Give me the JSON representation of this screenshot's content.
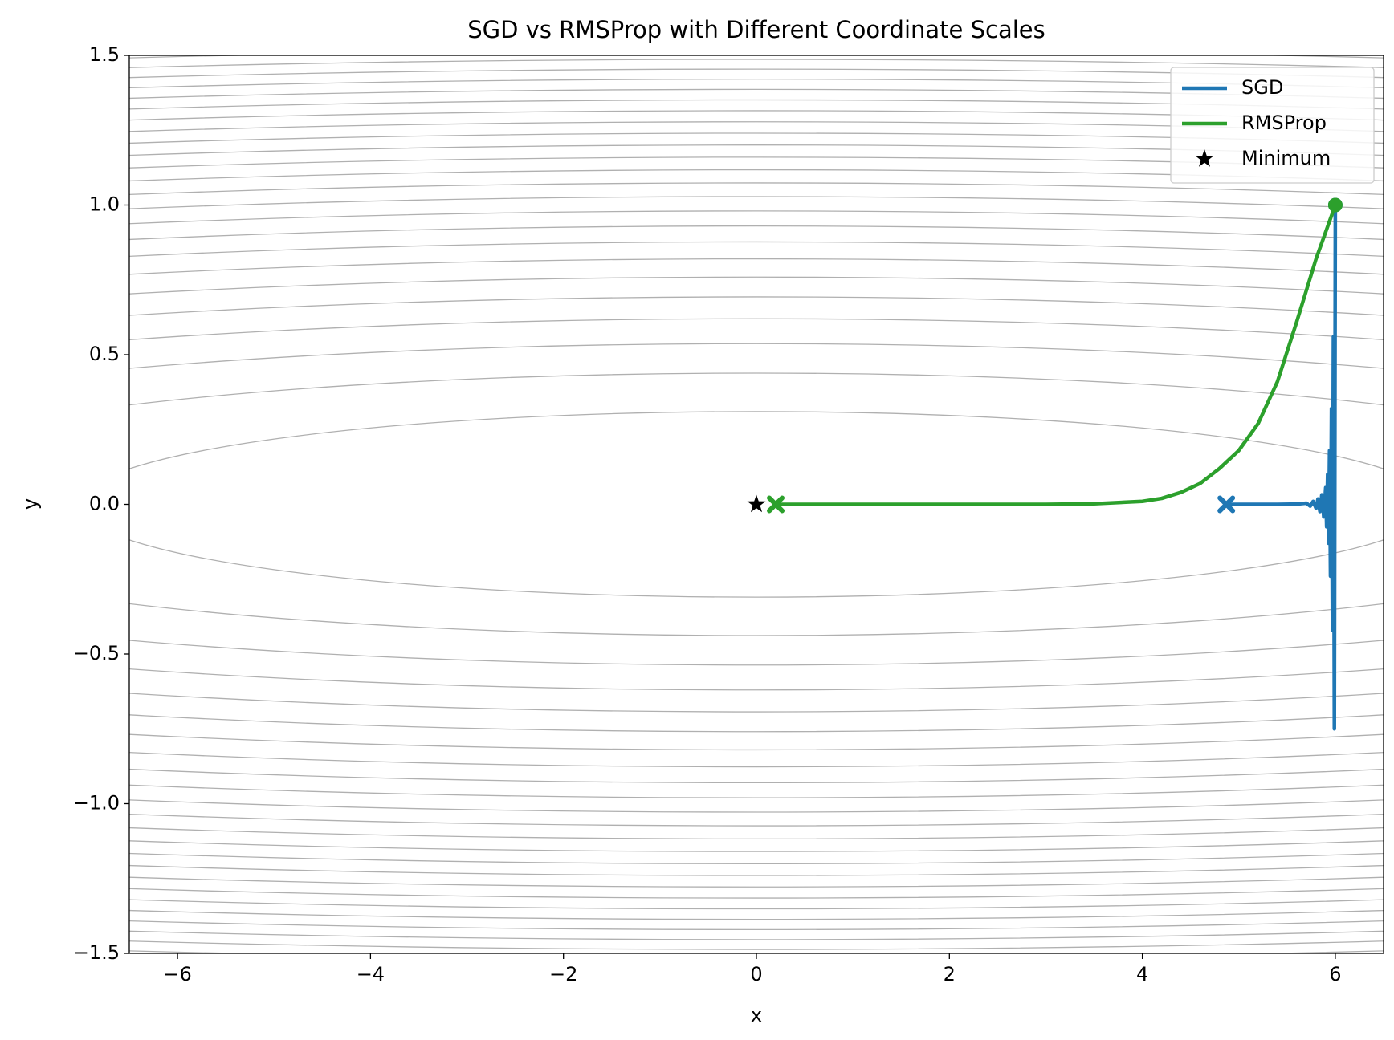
{
  "chart_data": {
    "type": "line",
    "title": "SGD vs RMSProp with Different Coordinate Scales",
    "x_label": "x",
    "y_label": "y",
    "xlim": [
      -6.5,
      6.5
    ],
    "ylim": [
      -1.5,
      1.5
    ],
    "xticks": [
      {
        "value": -6,
        "label": "−6"
      },
      {
        "value": -4,
        "label": "−4"
      },
      {
        "value": -2,
        "label": "−2"
      },
      0,
      2,
      4,
      6
    ],
    "yticks": [
      {
        "value": -1.5,
        "label": "−1.5"
      },
      {
        "value": -1.0,
        "label": "−1.0"
      },
      {
        "value": -0.5,
        "label": "−0.5"
      },
      {
        "value": 0,
        "label": "0.0"
      },
      0.5,
      {
        "value": 1.0,
        "label": "1.0"
      },
      1.5
    ],
    "legend": "upper right",
    "series": [
      {
        "name": "SGD",
        "color": "#1f77b4",
        "x": [
          6,
          5.99,
          5.98,
          5.97,
          5.96,
          5.95,
          5.94,
          5.93,
          5.92,
          5.91,
          5.9,
          5.88,
          5.86,
          5.84,
          5.82,
          5.8,
          5.77,
          5.74,
          5.7,
          5.6,
          5.4,
          5.2,
          5.0,
          4.87
        ],
        "values": [
          1,
          -0.75,
          0.56,
          -0.42,
          0.32,
          -0.24,
          0.18,
          -0.13,
          0.1,
          -0.075,
          0.056,
          -0.042,
          0.032,
          -0.024,
          0.018,
          -0.013,
          0.01,
          -0.006,
          0.004,
          0.001,
          0,
          0,
          0,
          0
        ]
      },
      {
        "name": "RMSProp",
        "color": "#2ca02c",
        "x": [
          6,
          5.8,
          5.6,
          5.4,
          5.2,
          5.0,
          4.8,
          4.6,
          4.4,
          4.2,
          4.0,
          3.5,
          3.0,
          2.0,
          1.0,
          0.5,
          0.2
        ],
        "values": [
          1,
          0.82,
          0.61,
          0.41,
          0.27,
          0.18,
          0.12,
          0.07,
          0.04,
          0.02,
          0.01,
          0.002,
          0,
          0,
          0,
          0,
          0
        ]
      }
    ],
    "minimum": {
      "name": "Minimum",
      "x": 0,
      "y": 0,
      "color": "#000000"
    }
  }
}
